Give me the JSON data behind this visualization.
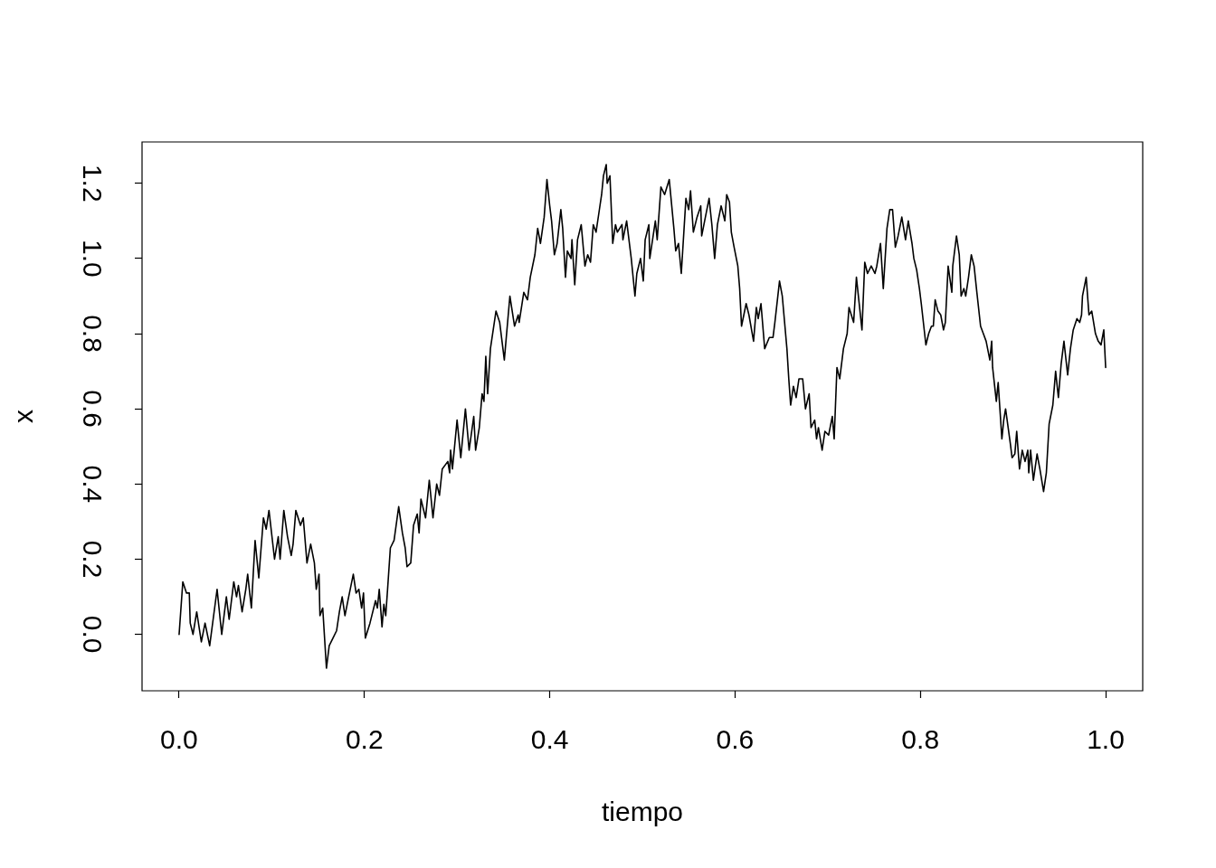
{
  "chart_data": {
    "type": "line",
    "xlabel": "tiempo",
    "ylabel": "x",
    "x": [
      0,
      0.004,
      0.008,
      0.011,
      0.012,
      0.015,
      0.019,
      0.024,
      0.028,
      0.033,
      0.041,
      0.046,
      0.051,
      0.054,
      0.059,
      0.062,
      0.064,
      0.068,
      0.072,
      0.074,
      0.078,
      0.082,
      0.086,
      0.091,
      0.094,
      0.097,
      0.103,
      0.107,
      0.109,
      0.113,
      0.117,
      0.121,
      0.123,
      0.126,
      0.131,
      0.134,
      0.138,
      0.142,
      0.146,
      0.148,
      0.151,
      0.152,
      0.155,
      0.159,
      0.162,
      0.166,
      0.17,
      0.173,
      0.176,
      0.179,
      0.183,
      0.188,
      0.191,
      0.194,
      0.197,
      0.199,
      0.201,
      0.206,
      0.208,
      0.212,
      0.214,
      0.216,
      0.219,
      0.221,
      0.223,
      0.225,
      0.228,
      0.232,
      0.237,
      0.241,
      0.244,
      0.246,
      0.25,
      0.253,
      0.257,
      0.259,
      0.261,
      0.266,
      0.27,
      0.274,
      0.278,
      0.281,
      0.284,
      0.29,
      0.292,
      0.293,
      0.295,
      0.3,
      0.304,
      0.309,
      0.313,
      0.318,
      0.32,
      0.324,
      0.327,
      0.329,
      0.331,
      0.333,
      0.336,
      0.342,
      0.346,
      0.351,
      0.357,
      0.362,
      0.366,
      0.367,
      0.372,
      0.376,
      0.379,
      0.384,
      0.387,
      0.39,
      0.394,
      0.397,
      0.4,
      0.402,
      0.405,
      0.408,
      0.412,
      0.414,
      0.417,
      0.419,
      0.423,
      0.424,
      0.427,
      0.43,
      0.434,
      0.438,
      0.441,
      0.444,
      0.447,
      0.45,
      0.453,
      0.456,
      0.458,
      0.461,
      0.462,
      0.465,
      0.468,
      0.471,
      0.473,
      0.478,
      0.479,
      0.483,
      0.488,
      0.492,
      0.494,
      0.498,
      0.501,
      0.503,
      0.507,
      0.508,
      0.514,
      0.516,
      0.52,
      0.524,
      0.529,
      0.534,
      0.536,
      0.539,
      0.542,
      0.547,
      0.55,
      0.552,
      0.555,
      0.559,
      0.563,
      0.564,
      0.568,
      0.572,
      0.575,
      0.578,
      0.581,
      0.585,
      0.589,
      0.591,
      0.594,
      0.596,
      0.599,
      0.603,
      0.605,
      0.607,
      0.612,
      0.615,
      0.62,
      0.623,
      0.625,
      0.628,
      0.632,
      0.637,
      0.641,
      0.643,
      0.648,
      0.651,
      0.656,
      0.658,
      0.66,
      0.663,
      0.666,
      0.669,
      0.673,
      0.676,
      0.68,
      0.682,
      0.686,
      0.688,
      0.69,
      0.694,
      0.697,
      0.701,
      0.705,
      0.707,
      0.71,
      0.713,
      0.717,
      0.721,
      0.723,
      0.728,
      0.731,
      0.734,
      0.737,
      0.74,
      0.743,
      0.747,
      0.751,
      0.753,
      0.757,
      0.76,
      0.764,
      0.767,
      0.77,
      0.773,
      0.776,
      0.78,
      0.784,
      0.787,
      0.791,
      0.793,
      0.796,
      0.799,
      0.801,
      0.806,
      0.809,
      0.812,
      0.814,
      0.816,
      0.819,
      0.822,
      0.825,
      0.827,
      0.83,
      0.834,
      0.835,
      0.839,
      0.842,
      0.844,
      0.847,
      0.849,
      0.852,
      0.855,
      0.858,
      0.861,
      0.865,
      0.868,
      0.871,
      0.875,
      0.877,
      0.878,
      0.882,
      0.884,
      0.888,
      0.89,
      0.892,
      0.897,
      0.899,
      0.902,
      0.904,
      0.907,
      0.91,
      0.913,
      0.916,
      0.917,
      0.919,
      0.922,
      0.926,
      0.929,
      0.933,
      0.936,
      0.939,
      0.943,
      0.946,
      0.949,
      0.952,
      0.955,
      0.959,
      0.962,
      0.965,
      0.969,
      0.972,
      0.974,
      0.975,
      0.979,
      0.982,
      0.985,
      0.989,
      0.992,
      0.995,
      0.998,
      1
    ],
    "series": [
      {
        "color": "#000000",
        "values": [
          0,
          0.14,
          0.11,
          0.11,
          0.03,
          0,
          0.06,
          -0.02,
          0.03,
          -0.03,
          0.12,
          0,
          0.1,
          0.04,
          0.14,
          0.1,
          0.13,
          0.06,
          0.12,
          0.16,
          0.07,
          0.25,
          0.15,
          0.31,
          0.28,
          0.33,
          0.2,
          0.26,
          0.2,
          0.33,
          0.26,
          0.21,
          0.24,
          0.33,
          0.29,
          0.31,
          0.19,
          0.24,
          0.19,
          0.12,
          0.16,
          0.05,
          0.07,
          -0.09,
          -0.03,
          -0.01,
          0.01,
          0.06,
          0.1,
          0.05,
          0.1,
          0.16,
          0.11,
          0.12,
          0.07,
          0.11,
          -0.01,
          0.03,
          0.05,
          0.09,
          0.07,
          0.12,
          0.02,
          0.08,
          0.05,
          0.12,
          0.23,
          0.25,
          0.34,
          0.27,
          0.23,
          0.18,
          0.19,
          0.29,
          0.32,
          0.27,
          0.36,
          0.31,
          0.41,
          0.31,
          0.4,
          0.37,
          0.44,
          0.46,
          0.43,
          0.49,
          0.44,
          0.57,
          0.47,
          0.6,
          0.49,
          0.58,
          0.49,
          0.55,
          0.64,
          0.62,
          0.74,
          0.64,
          0.76,
          0.86,
          0.83,
          0.73,
          0.9,
          0.82,
          0.85,
          0.83,
          0.91,
          0.89,
          0.95,
          1.01,
          1.08,
          1.04,
          1.11,
          1.21,
          1.14,
          1.1,
          1.01,
          1.04,
          1.13,
          1.08,
          0.95,
          1.02,
          1,
          1.05,
          0.93,
          1.05,
          1.09,
          0.98,
          1.01,
          0.99,
          1.09,
          1.07,
          1.12,
          1.17,
          1.22,
          1.25,
          1.2,
          1.22,
          1.04,
          1.09,
          1.07,
          1.09,
          1.05,
          1.1,
          1,
          0.9,
          0.96,
          1,
          0.94,
          1.05,
          1.09,
          1,
          1.1,
          1.05,
          1.19,
          1.17,
          1.21,
          1.08,
          1.02,
          1.04,
          0.96,
          1.16,
          1.13,
          1.18,
          1.07,
          1.11,
          1.14,
          1.06,
          1.11,
          1.16,
          1.09,
          1,
          1.09,
          1.14,
          1.1,
          1.17,
          1.15,
          1.07,
          1.03,
          0.98,
          0.92,
          0.82,
          0.88,
          0.85,
          0.78,
          0.87,
          0.84,
          0.88,
          0.76,
          0.79,
          0.79,
          0.83,
          0.94,
          0.9,
          0.76,
          0.68,
          0.61,
          0.66,
          0.63,
          0.68,
          0.68,
          0.6,
          0.64,
          0.55,
          0.57,
          0.52,
          0.55,
          0.49,
          0.54,
          0.53,
          0.58,
          0.52,
          0.71,
          0.68,
          0.76,
          0.8,
          0.87,
          0.83,
          0.95,
          0.88,
          0.81,
          0.99,
          0.96,
          0.98,
          0.96,
          0.98,
          1.04,
          0.92,
          1.08,
          1.13,
          1.13,
          1.03,
          1.06,
          1.11,
          1.05,
          1.1,
          1.04,
          1,
          0.97,
          0.92,
          0.88,
          0.77,
          0.8,
          0.82,
          0.82,
          0.89,
          0.86,
          0.85,
          0.81,
          0.83,
          0.98,
          0.91,
          0.98,
          1.06,
          1.01,
          0.9,
          0.92,
          0.9,
          0.95,
          1.01,
          0.98,
          0.91,
          0.82,
          0.8,
          0.78,
          0.73,
          0.78,
          0.71,
          0.62,
          0.67,
          0.52,
          0.57,
          0.6,
          0.51,
          0.47,
          0.48,
          0.54,
          0.44,
          0.49,
          0.46,
          0.49,
          0.43,
          0.49,
          0.41,
          0.48,
          0.44,
          0.38,
          0.43,
          0.56,
          0.61,
          0.7,
          0.63,
          0.72,
          0.78,
          0.69,
          0.76,
          0.81,
          0.84,
          0.83,
          0.85,
          0.9,
          0.95,
          0.85,
          0.86,
          0.8,
          0.78,
          0.77,
          0.81,
          0.71
        ]
      }
    ],
    "xlim": [
      -0.04,
      1.04
    ],
    "xticks": [
      {
        "value": 0,
        "label": "0.0"
      },
      0.2,
      0.4,
      0.6,
      0.8,
      {
        "value": 1,
        "label": "1.0"
      }
    ],
    "ylim": [
      -0.15,
      1.31
    ],
    "yticks": [
      {
        "value": 0,
        "label": "0.0"
      },
      0.2,
      0.4,
      0.6,
      0.8,
      {
        "value": 1,
        "label": "1.0"
      },
      1.2
    ],
    "marker": "none",
    "line_style": "solid"
  }
}
